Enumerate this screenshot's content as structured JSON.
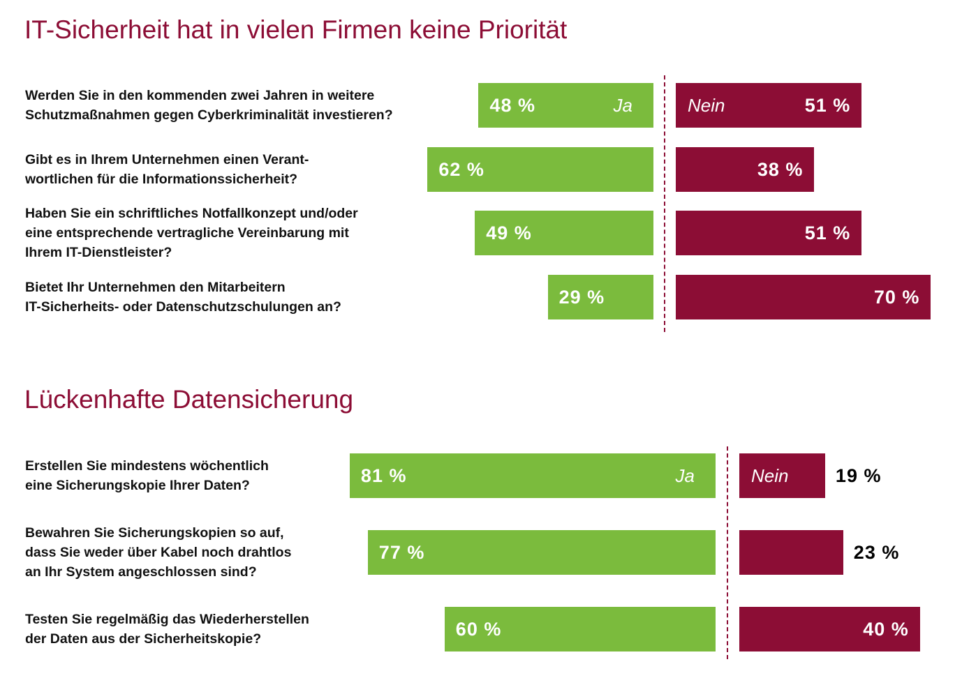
{
  "chart_data": [
    {
      "type": "diverging-bar",
      "title": "IT-Sicherheit hat in vielen Firmen keine Priorität",
      "categories": [
        "Werden Sie in den kommenden zwei Jahren in weitere\nSchutzmaßnahmen gegen Cyberkriminalität investieren?",
        "Gibt es in Ihrem Unternehmen einen Verant-\nwortlichen für die Informationssicherheit?",
        "Haben Sie ein schriftliches Notfallkonzept und/oder\neine entsprechende vertragliche Vereinbarung mit\nIhrem IT-Dienstleister?",
        "Bietet Ihr Unternehmen den Mitarbeitern\nIT-Sicherheits- oder Datenschutzschulungen an?"
      ],
      "series": [
        {
          "name": "Ja",
          "color": "#7bbb3d",
          "values": [
            48,
            62,
            49,
            29
          ],
          "value_labels": [
            "48 %",
            "62 %",
            "49 %",
            "29 %"
          ]
        },
        {
          "name": "Nein",
          "color": "#8c0d35",
          "values": [
            51,
            38,
            51,
            70
          ],
          "value_labels": [
            "51 %",
            "38 %",
            "51 %",
            "70 %"
          ]
        }
      ]
    },
    {
      "type": "diverging-bar",
      "title": "Lückenhafte Datensicherung",
      "categories": [
        "Erstellen Sie mindestens wöchentlich\neine Sicherungskopie Ihrer Daten?",
        "Bewahren Sie Sicherungskopien so auf,\ndass Sie weder über Kabel noch drahtlos\nan Ihr System angeschlossen sind?",
        "Testen Sie regelmäßig das Wiederherstellen\nder Daten aus der Sicherheitskopie?"
      ],
      "series": [
        {
          "name": "Ja",
          "color": "#7bbb3d",
          "values": [
            81,
            77,
            60
          ],
          "value_labels": [
            "81 %",
            "77 %",
            "60 %"
          ]
        },
        {
          "name": "Nein",
          "color": "#8c0d35",
          "values": [
            19,
            23,
            40
          ],
          "value_labels": [
            "19 %",
            "23 %",
            "40 %"
          ]
        }
      ]
    }
  ]
}
